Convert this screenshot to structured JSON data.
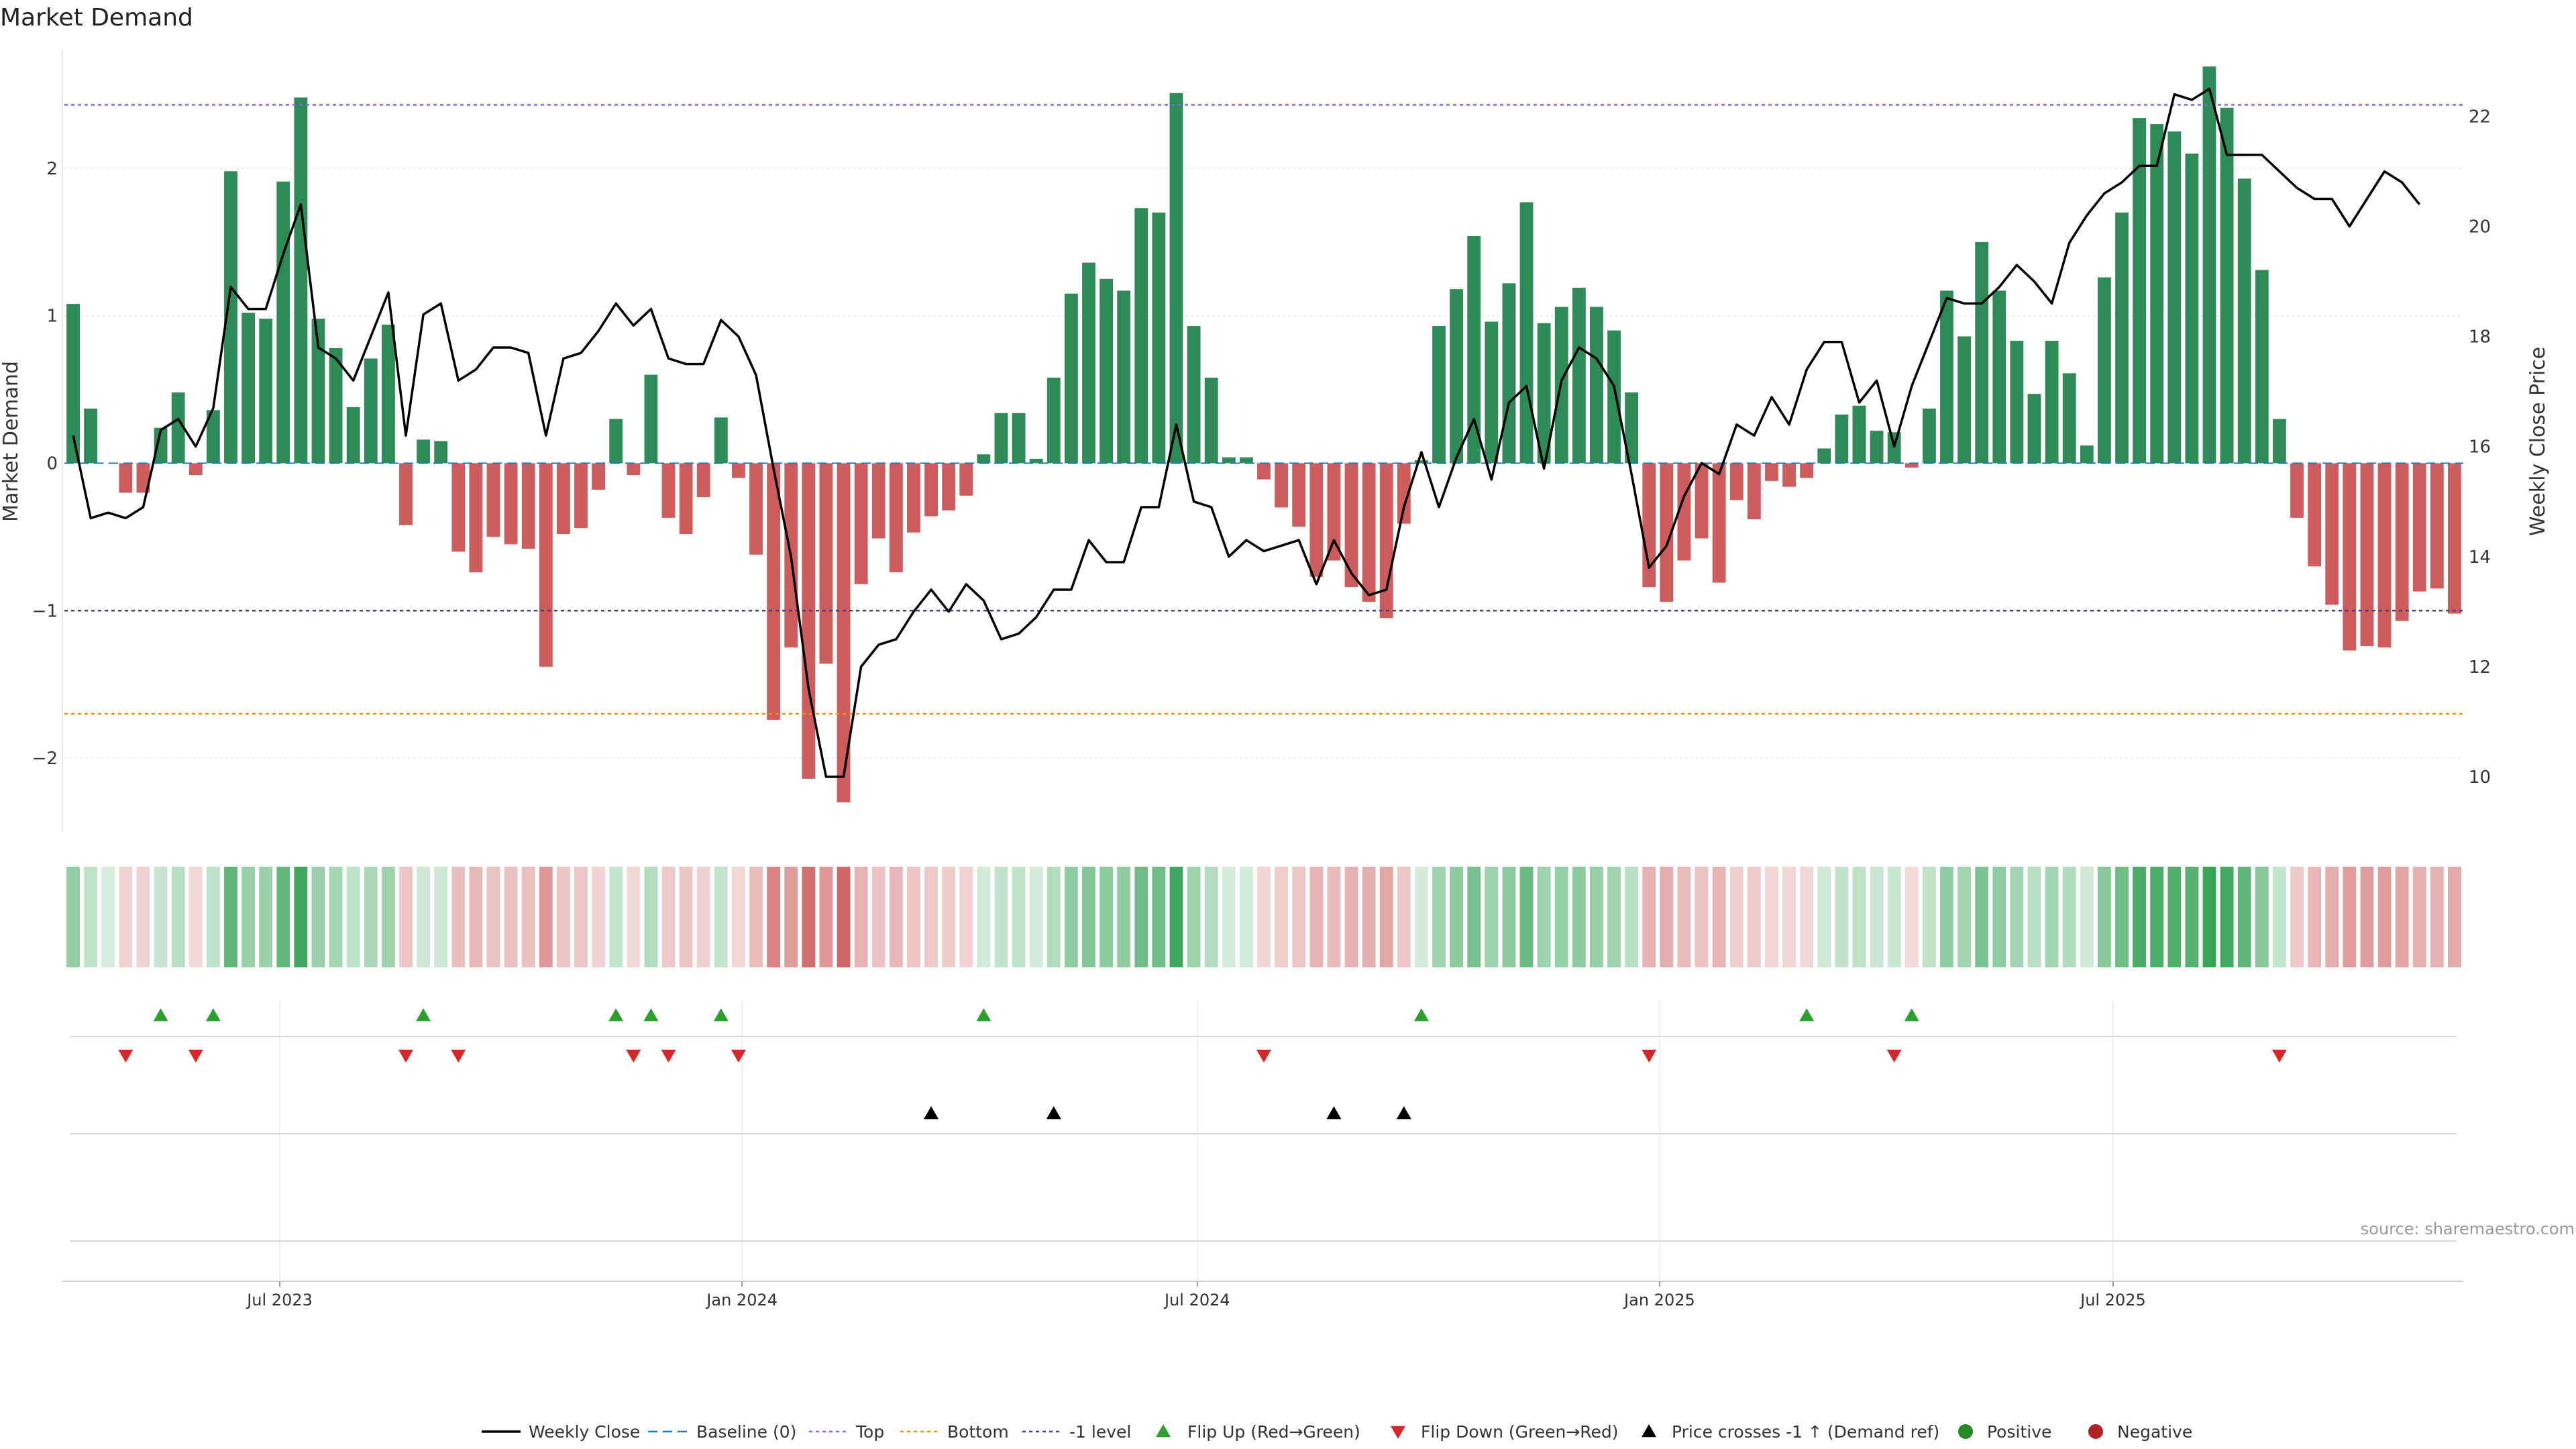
{
  "title": "Market Demand",
  "source": "source: sharemaestro.com",
  "colors": {
    "positive": "#2e8b57",
    "negative": "#cd5c5c",
    "line": "#000000",
    "baseline": "#1f77b4",
    "top": "#7b68ee",
    "bottom": "#ff8c00",
    "minus1": "#483d8b",
    "flip_up": "#2ca02c",
    "flip_down": "#d62728",
    "cross": "#000000",
    "positive_dot": "#228b22",
    "negative_dot": "#b22222"
  },
  "chart_data": {
    "type": "bar",
    "title": "Market Demand",
    "ylabel": "Market Demand",
    "y2label": "Weekly Close Price",
    "ylim": [
      -2.5,
      2.8
    ],
    "y2lim": [
      9.0,
      23.2
    ],
    "yticks": [
      -2,
      -1,
      0,
      1,
      2
    ],
    "ytick_labels": [
      "−2",
      "−1",
      "0",
      "1",
      "2"
    ],
    "y2ticks": [
      10,
      12,
      14,
      16,
      18,
      20,
      22
    ],
    "levels": {
      "top": 2.43,
      "bottom": -1.7,
      "minus1": -1.0,
      "baseline": 0
    },
    "x_ticks": [
      {
        "label": "Jul 2023",
        "index": 12.3
      },
      {
        "label": "Jan 2024",
        "index": 38.7
      },
      {
        "label": "Jul 2024",
        "index": 64.7
      },
      {
        "label": "Jan 2025",
        "index": 91.1
      },
      {
        "label": "Jul 2025",
        "index": 117.0
      }
    ],
    "demand": [
      1.08,
      0.37,
      0,
      -0.2,
      -0.2,
      0.24,
      0.48,
      -0.08,
      0.36,
      1.98,
      1.02,
      0.98,
      1.91,
      2.48,
      0.98,
      0.78,
      0.38,
      0.71,
      0.94,
      -0.42,
      0.16,
      0.15,
      -0.6,
      -0.74,
      -0.5,
      -0.55,
      -0.58,
      -1.38,
      -0.48,
      -0.44,
      -0.18,
      0.3,
      -0.08,
      0.6,
      -0.37,
      -0.48,
      -0.23,
      0.31,
      -0.1,
      -0.62,
      -1.74,
      -1.25,
      -2.14,
      -1.36,
      -2.3,
      -0.82,
      -0.51,
      -0.74,
      -0.47,
      -0.36,
      -0.32,
      -0.22,
      0.06,
      0.34,
      0.34,
      0.03,
      0.58,
      1.15,
      1.36,
      1.25,
      1.17,
      1.73,
      1.7,
      2.51,
      0.93,
      0.58,
      0.04,
      0.04,
      -0.11,
      -0.3,
      -0.43,
      -0.77,
      -0.66,
      -0.84,
      -0.94,
      -1.05,
      -0.41,
      0.02,
      0.93,
      1.18,
      1.54,
      0.96,
      1.22,
      1.77,
      0.95,
      1.06,
      1.19,
      1.06,
      0.9,
      0.48,
      -0.84,
      -0.94,
      -0.66,
      -0.51,
      -0.81,
      -0.25,
      -0.38,
      -0.12,
      -0.16,
      -0.1,
      0.1,
      0.33,
      0.39,
      0.22,
      0.21,
      -0.03,
      0.37,
      1.17,
      0.86,
      1.5,
      1.17,
      0.83,
      0.47,
      0.83,
      0.61,
      0.12,
      1.26,
      1.7,
      2.34,
      2.3,
      2.25,
      2.1,
      2.69,
      2.41,
      1.93,
      1.31,
      0.3,
      -0.37,
      -0.7,
      -0.96,
      -1.27,
      -1.24,
      -1.25,
      -1.07,
      -0.87,
      -0.85,
      -1.02
    ],
    "close": [
      16.2,
      14.7,
      14.8,
      14.7,
      14.9,
      16.3,
      16.5,
      16.0,
      16.7,
      18.9,
      18.5,
      18.5,
      19.5,
      20.4,
      17.8,
      17.6,
      17.2,
      18.0,
      18.8,
      16.2,
      18.4,
      18.6,
      17.2,
      17.4,
      17.8,
      17.8,
      17.7,
      16.2,
      17.6,
      17.7,
      18.1,
      18.6,
      18.2,
      18.5,
      17.6,
      17.5,
      17.5,
      18.3,
      18.0,
      17.3,
      15.6,
      14.0,
      11.6,
      10.0,
      10.0,
      12.0,
      12.4,
      12.5,
      13.0,
      13.4,
      13.0,
      13.5,
      13.2,
      12.5,
      12.6,
      12.9,
      13.4,
      13.4,
      14.3,
      13.9,
      13.9,
      14.9,
      14.9,
      16.4,
      15.0,
      14.9,
      14.0,
      14.3,
      14.1,
      14.2,
      14.3,
      13.5,
      14.3,
      13.7,
      13.3,
      13.4,
      14.9,
      15.9,
      14.9,
      15.8,
      16.5,
      15.4,
      16.8,
      17.1,
      15.6,
      17.2,
      17.8,
      17.6,
      17.1,
      15.5,
      13.8,
      14.2,
      15.1,
      15.7,
      15.5,
      16.4,
      16.2,
      16.9,
      16.4,
      17.4,
      17.9,
      17.9,
      16.8,
      17.2,
      16.0,
      17.1,
      17.9,
      18.7,
      18.6,
      18.6,
      18.9,
      19.3,
      19.0,
      18.6,
      19.7,
      20.2,
      20.6,
      20.8,
      21.1,
      21.1,
      22.4,
      22.3,
      22.5,
      21.3,
      21.3,
      21.3,
      21.0,
      20.7,
      20.5,
      20.5,
      20.0,
      20.5,
      21.0,
      20.8,
      20.4
    ],
    "flip_up": [
      5,
      8,
      20,
      31,
      33,
      37,
      52,
      77,
      99,
      105
    ],
    "flip_down": [
      3,
      7,
      19,
      22,
      32,
      34,
      38,
      68,
      90,
      104,
      126
    ],
    "price_cross": [
      49,
      56,
      72,
      76
    ],
    "legend": [
      "Weekly Close",
      "Baseline (0)",
      "Top",
      "Bottom",
      "-1 level",
      "Flip Up (Red→Green)",
      "Flip Down (Green→Red)",
      "Price crosses -1 ↑ (Demand ref)",
      "Positive",
      "Negative"
    ]
  }
}
